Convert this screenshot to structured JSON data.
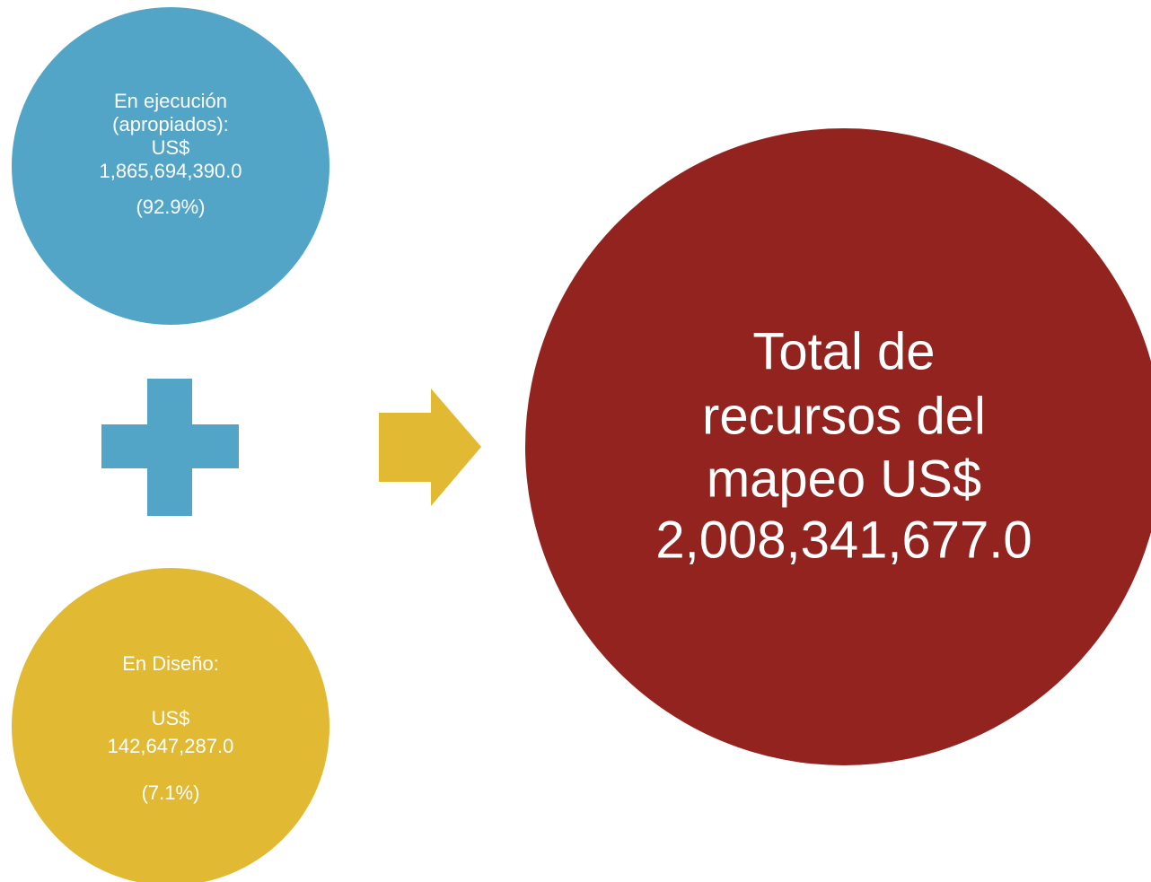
{
  "nodes": [
    {
      "lines": [
        "En ejecución",
        "(apropiados):",
        "US$",
        "1,865,694,390.0",
        "(92.9%)"
      ]
    },
    {
      "lines": [
        "En Diseño:",
        "US$",
        "142,647,287.0",
        "(7.1%)"
      ]
    },
    {
      "lines": [
        "Total de",
        "recursos del",
        "mapeo US$",
        "2,008,341,677.0"
      ]
    }
  ]
}
